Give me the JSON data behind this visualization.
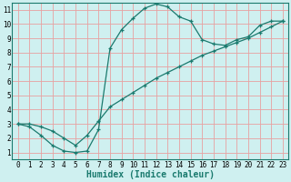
{
  "xlabel": "Humidex (Indice chaleur)",
  "bg_color": "#cff0f0",
  "grid_color": "#e8a0a0",
  "line_color": "#1a7a6e",
  "xlim": [
    -0.5,
    23.5
  ],
  "ylim": [
    0.5,
    11.5
  ],
  "xticks": [
    0,
    1,
    2,
    3,
    4,
    5,
    6,
    7,
    8,
    9,
    10,
    11,
    12,
    13,
    14,
    15,
    16,
    17,
    18,
    19,
    20,
    21,
    22,
    23
  ],
  "yticks": [
    1,
    2,
    3,
    4,
    5,
    6,
    7,
    8,
    9,
    10,
    11
  ],
  "line1_x": [
    0,
    1,
    2,
    3,
    4,
    5,
    6,
    7,
    8,
    9,
    10,
    11,
    12,
    13,
    14,
    15,
    16,
    17,
    18,
    19,
    20,
    21,
    22,
    23
  ],
  "line1_y": [
    3.0,
    2.8,
    2.2,
    1.5,
    1.1,
    1.0,
    1.1,
    2.6,
    8.3,
    9.6,
    10.4,
    11.1,
    11.4,
    11.2,
    10.5,
    10.2,
    8.9,
    8.6,
    8.5,
    8.9,
    9.1,
    9.9,
    10.2,
    10.2
  ],
  "line2_x": [
    0,
    1,
    2,
    3,
    4,
    5,
    6,
    7,
    8,
    9,
    10,
    11,
    12,
    13,
    14,
    15,
    16,
    17,
    18,
    19,
    20,
    21,
    22,
    23
  ],
  "line2_y": [
    3.0,
    3.0,
    2.8,
    2.5,
    2.0,
    1.5,
    2.2,
    3.2,
    4.2,
    4.7,
    5.2,
    5.7,
    6.2,
    6.6,
    7.0,
    7.4,
    7.8,
    8.1,
    8.4,
    8.7,
    9.0,
    9.4,
    9.8,
    10.2
  ],
  "figsize": [
    3.2,
    2.0
  ],
  "dpi": 100,
  "tick_fontsize": 5.5,
  "label_fontsize": 7.0
}
